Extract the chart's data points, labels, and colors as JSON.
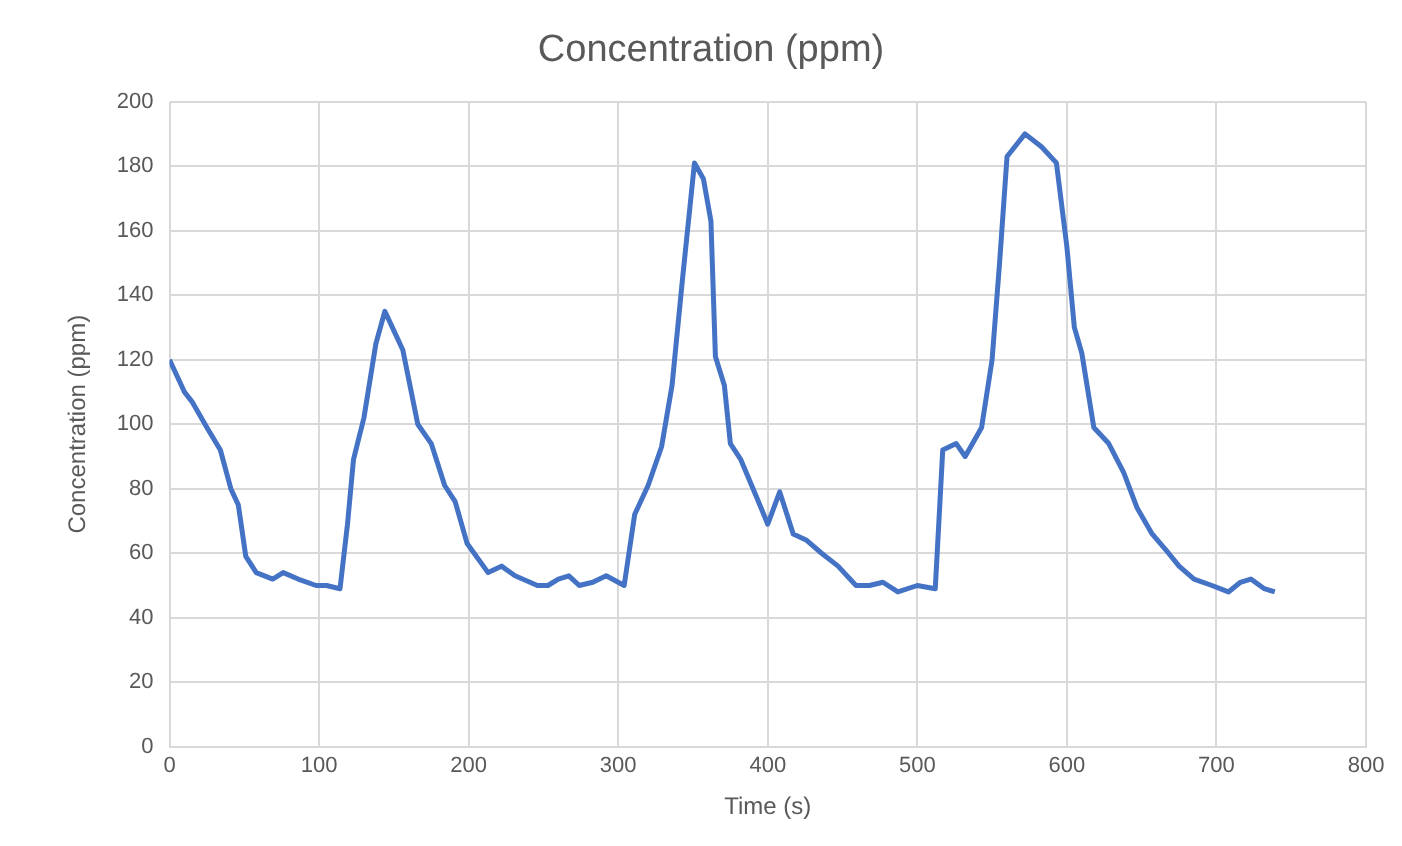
{
  "chart_data": {
    "type": "line",
    "title": "Concentration (ppm)",
    "xlabel": "Time (s)",
    "ylabel": "Concentration (ppm)",
    "xlim": [
      0,
      800
    ],
    "xticks": [
      0,
      100,
      200,
      300,
      400,
      500,
      600,
      700,
      800
    ],
    "ylim": [
      0,
      200
    ],
    "yticks": [
      0,
      20,
      40,
      60,
      80,
      100,
      120,
      140,
      160,
      180,
      200
    ],
    "grid": true,
    "legend": false,
    "marker": "none",
    "line_style": "solid",
    "series": [
      {
        "color": "#4472c4",
        "x": [
          0,
          10,
          15,
          25,
          34,
          41,
          46,
          51,
          58,
          69,
          76,
          86,
          98,
          105,
          114,
          119,
          123,
          130,
          138,
          144,
          149,
          156,
          166,
          175,
          184,
          191,
          199,
          213,
          222,
          231,
          246,
          253,
          260,
          267,
          274,
          283,
          292,
          304,
          311,
          320,
          329,
          336,
          343,
          351,
          357,
          362,
          365,
          371,
          375,
          382,
          392,
          400,
          408,
          417,
          426,
          436,
          447,
          459,
          468,
          477,
          487,
          500,
          512,
          517,
          526,
          532,
          543,
          550,
          555,
          560,
          572,
          583,
          593,
          600,
          605,
          610,
          618,
          628,
          638,
          647,
          657,
          668,
          675,
          685,
          697,
          708,
          716,
          723,
          732,
          739
        ],
        "values": [
          120,
          110,
          107,
          99,
          92,
          80,
          75,
          59,
          54,
          52,
          54,
          52,
          50,
          50,
          49,
          69,
          89,
          102,
          125,
          135,
          130,
          123,
          100,
          94,
          81,
          76,
          63,
          54,
          56,
          53,
          50,
          50,
          52,
          53,
          50,
          51,
          53,
          50,
          72,
          81,
          93,
          112,
          145,
          181,
          176,
          163,
          121,
          112,
          94,
          89,
          78,
          69,
          79,
          66,
          64,
          60,
          56,
          50,
          50,
          51,
          48,
          50,
          49,
          92,
          94,
          90,
          99,
          120,
          150,
          183,
          190,
          186,
          181,
          155,
          130,
          122,
          99,
          94,
          85,
          74,
          66,
          60,
          56,
          52,
          50,
          48,
          51,
          52,
          49,
          48
        ]
      }
    ]
  }
}
